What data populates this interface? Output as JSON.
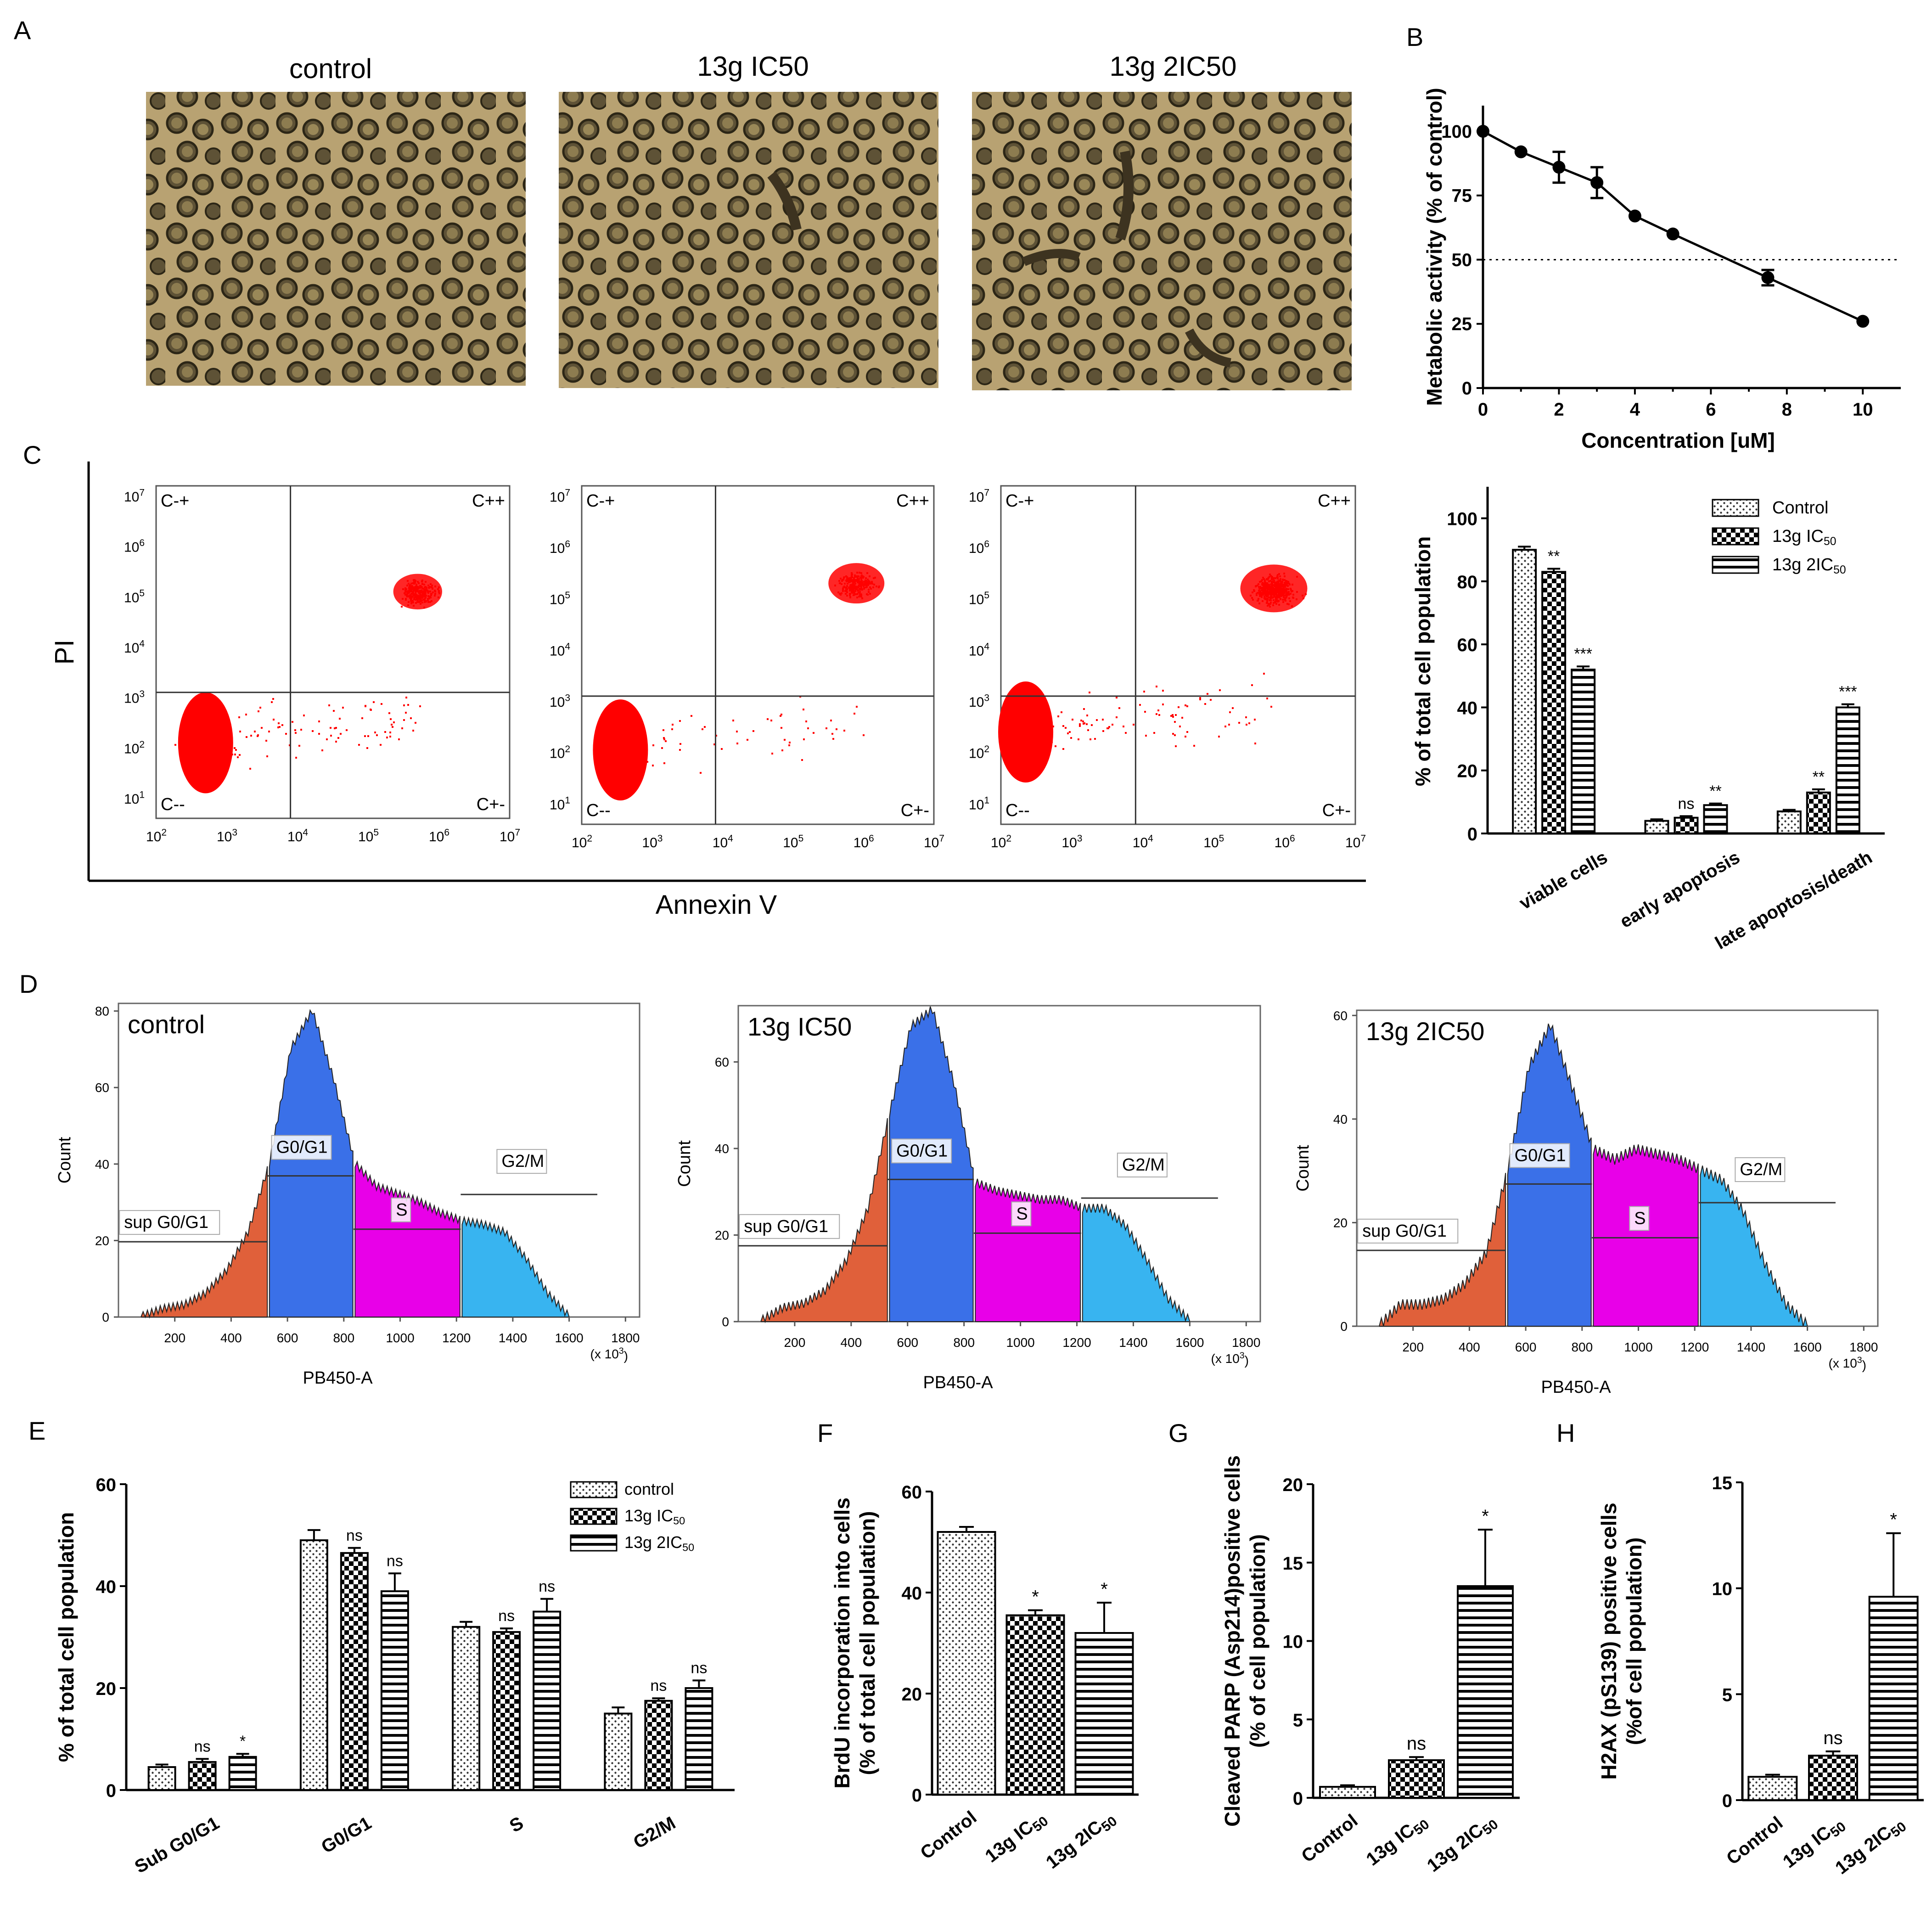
{
  "panel_labels": [
    "A",
    "B",
    "C",
    "D",
    "E",
    "F",
    "G",
    "H"
  ],
  "colors": {
    "scatter": "#ff0000",
    "hist_sub": "#e0603a",
    "hist_g0g1": "#3a70e8",
    "hist_s": "#e800e8",
    "hist_g2m": "#38b4f0",
    "micro_bg": "#b4a070"
  },
  "panelA": {
    "titles": [
      "control",
      "13g IC50",
      "13g 2IC50"
    ],
    "image_desc": "phase-contrast-micrograph-icon"
  },
  "panelC_scatter": {
    "ylabel": "PI",
    "xlabel": "Annexin V",
    "quadrants": [
      "C-+",
      "C++",
      "C--",
      "C+-"
    ],
    "ticks": [
      "10",
      "10",
      "10",
      "10",
      "10",
      "10"
    ],
    "tick_exps": [
      "2",
      "3",
      "4",
      "5",
      "6",
      "7"
    ],
    "ytick_exps": [
      "1",
      "2",
      "3",
      "4",
      "5",
      "6",
      "7"
    ]
  },
  "panelD": {
    "titles": [
      "control",
      "13g IC50",
      "13g 2IC50"
    ],
    "gates": [
      "sup G0/G1",
      "G0/G1",
      "S",
      "G2/M"
    ],
    "xlabel": "PB450-A",
    "ylabel": "Count",
    "xunit": "(x 10",
    "xunit_exp": "3",
    "xunit_close": ")",
    "xticks": [
      "200",
      "400",
      "600",
      "800",
      "1000",
      "1200",
      "1400",
      "1600",
      "1800"
    ],
    "yticks": [
      [
        "0",
        "20",
        "40",
        "60",
        "80"
      ],
      [
        "0",
        "20",
        "40",
        "60"
      ],
      [
        "0",
        "20",
        "40",
        "60"
      ]
    ]
  },
  "chart_data": [
    {
      "id": "B",
      "type": "line",
      "title": "",
      "xlabel": "Concentration [uM]",
      "ylabel": "Metabolic activity (% of control)",
      "x": [
        0,
        1,
        2,
        3,
        4,
        5,
        7.5,
        10
      ],
      "y": [
        100,
        92,
        86,
        80,
        67,
        60,
        43,
        26
      ],
      "err": [
        0,
        0,
        6,
        6,
        0,
        0,
        3,
        0
      ],
      "xlim": [
        0,
        11
      ],
      "ylim": [
        0,
        110
      ],
      "xticks": [
        "0",
        "2",
        "4",
        "6",
        "8",
        "10"
      ],
      "yticks": [
        "0",
        "25",
        "50",
        "75",
        "100"
      ],
      "reference_line": 50
    },
    {
      "id": "C",
      "type": "bar",
      "ylabel": "% of total cell population",
      "categories": [
        "viable cells",
        "early apoptosis",
        "late apoptosis/death"
      ],
      "series": [
        {
          "name": "Control",
          "sub": "",
          "values": [
            90,
            4,
            7
          ],
          "err": [
            1,
            0.5,
            0.5
          ],
          "sig": [
            "",
            "",
            ""
          ]
        },
        {
          "name": "13g IC",
          "sub": "50",
          "values": [
            83,
            5,
            13
          ],
          "err": [
            1,
            0.5,
            1
          ],
          "sig": [
            "**",
            "ns",
            "**"
          ]
        },
        {
          "name": "13g 2IC",
          "sub": "50",
          "values": [
            52,
            9,
            40
          ],
          "err": [
            1,
            0.5,
            1
          ],
          "sig": [
            "***",
            "**",
            "***"
          ]
        }
      ],
      "ylim": [
        0,
        110
      ],
      "yticks": [
        "0",
        "20",
        "40",
        "60",
        "80",
        "100"
      ]
    },
    {
      "id": "E",
      "type": "bar",
      "ylabel": "% of total cell population",
      "categories": [
        "Sub G0/G1",
        "G0/G1",
        "S",
        "G2/M"
      ],
      "series": [
        {
          "name": "control",
          "sub": "",
          "values": [
            4.5,
            49,
            32,
            15
          ],
          "err": [
            0.5,
            2,
            1,
            1.2
          ],
          "sig": [
            "",
            "",
            "",
            ""
          ]
        },
        {
          "name": "13g IC",
          "sub": "50",
          "values": [
            5.5,
            46.5,
            31,
            17.5
          ],
          "err": [
            0.6,
            1,
            0.7,
            0.5
          ],
          "sig": [
            "ns",
            "ns",
            "ns",
            "ns"
          ]
        },
        {
          "name": "13g 2IC",
          "sub": "50",
          "values": [
            6.5,
            39,
            35,
            20
          ],
          "err": [
            0.6,
            3.5,
            2.5,
            1.5
          ],
          "sig": [
            "*",
            "ns",
            "ns",
            "ns"
          ]
        }
      ],
      "ylim": [
        0,
        60
      ],
      "yticks": [
        "0",
        "20",
        "40",
        "60"
      ]
    },
    {
      "id": "F",
      "type": "bar",
      "ylabel_lines": [
        "BrdU incorporation into cells",
        "(% of total cell population)"
      ],
      "categories": [
        "Control",
        "13g IC",
        "13g 2IC"
      ],
      "category_subs": [
        "",
        "50",
        "50"
      ],
      "values": [
        52,
        35.5,
        32
      ],
      "err": [
        1,
        1,
        6
      ],
      "sig": [
        "",
        "*",
        "*"
      ],
      "ylim": [
        0,
        60
      ],
      "yticks": [
        "0",
        "20",
        "40",
        "60"
      ]
    },
    {
      "id": "G",
      "type": "bar",
      "ylabel_lines": [
        "Cleaved PARP (Asp214)positive cells",
        "(% of cell population)"
      ],
      "categories": [
        "Control",
        "13g IC",
        "13g 2IC"
      ],
      "category_subs": [
        "",
        "50",
        "50"
      ],
      "values": [
        0.7,
        2.4,
        13.5
      ],
      "err": [
        0.1,
        0.2,
        3.6
      ],
      "sig": [
        "",
        "ns",
        "*"
      ],
      "ylim": [
        0,
        20
      ],
      "yticks": [
        "0",
        "5",
        "10",
        "15",
        "20"
      ]
    },
    {
      "id": "H",
      "type": "bar",
      "ylabel_lines": [
        "H2AX (pS139) positive cells",
        "(%of cell population)"
      ],
      "categories": [
        "Control",
        "13g IC",
        "13g 2IC"
      ],
      "category_subs": [
        "",
        "50",
        "50"
      ],
      "values": [
        1.1,
        2.1,
        9.6
      ],
      "err": [
        0.1,
        0.2,
        3
      ],
      "sig": [
        "",
        "ns",
        "*"
      ],
      "ylim": [
        0,
        15
      ],
      "yticks": [
        "0",
        "5",
        "10",
        "15"
      ]
    }
  ]
}
